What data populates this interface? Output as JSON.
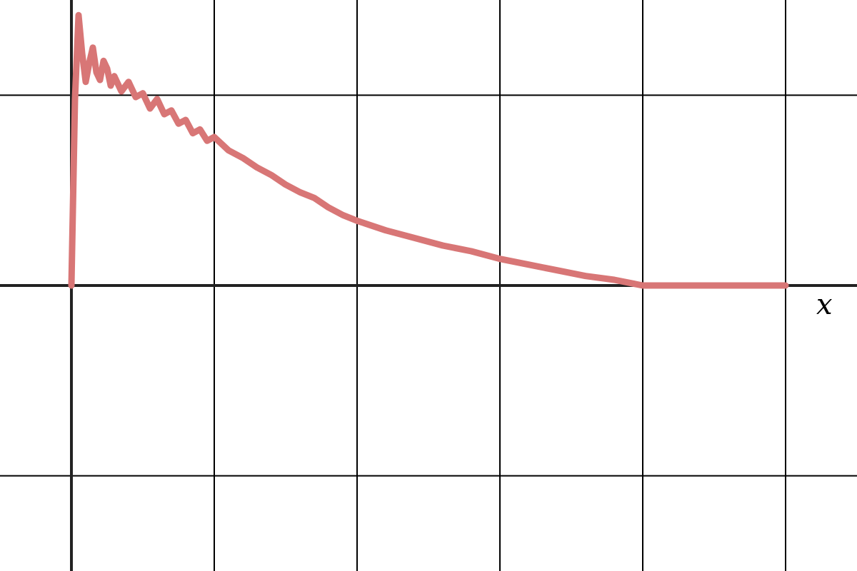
{
  "chart_data": {
    "type": "line",
    "title": "",
    "xlabel": "x",
    "ylabel": "",
    "xlim": [
      -0.5,
      5.5
    ],
    "ylim": [
      -1.5,
      1.5
    ],
    "x_gridlines": [
      0,
      1,
      2,
      3,
      4,
      5
    ],
    "y_gridlines": [
      -1,
      0,
      1
    ],
    "grid": true,
    "series": [
      {
        "color": "#d87676",
        "x": [
          0,
          0.025,
          0.05,
          0.075,
          0.1,
          0.125,
          0.15,
          0.175,
          0.2,
          0.225,
          0.25,
          0.275,
          0.3,
          0.35,
          0.4,
          0.45,
          0.5,
          0.55,
          0.6,
          0.65,
          0.7,
          0.75,
          0.8,
          0.85,
          0.9,
          0.95,
          1.0,
          1.1,
          1.2,
          1.3,
          1.4,
          1.5,
          1.6,
          1.7,
          1.8,
          1.9,
          2.0,
          2.2,
          2.4,
          2.6,
          2.8,
          3.0,
          3.2,
          3.4,
          3.6,
          3.8,
          4.0,
          4.2,
          4.4,
          4.6,
          4.8,
          5.0
        ],
        "y": [
          0,
          0.98,
          1.42,
          1.22,
          1.07,
          1.17,
          1.25,
          1.12,
          1.08,
          1.18,
          1.14,
          1.05,
          1.1,
          1.02,
          1.07,
          0.99,
          1.01,
          0.93,
          0.98,
          0.9,
          0.92,
          0.85,
          0.87,
          0.8,
          0.82,
          0.76,
          0.78,
          0.71,
          0.67,
          0.62,
          0.58,
          0.53,
          0.49,
          0.46,
          0.41,
          0.37,
          0.34,
          0.29,
          0.25,
          0.21,
          0.18,
          0.14,
          0.11,
          0.08,
          0.05,
          0.03,
          0.0,
          0.0,
          0.0,
          0.0,
          0.0,
          0.0
        ]
      }
    ]
  }
}
